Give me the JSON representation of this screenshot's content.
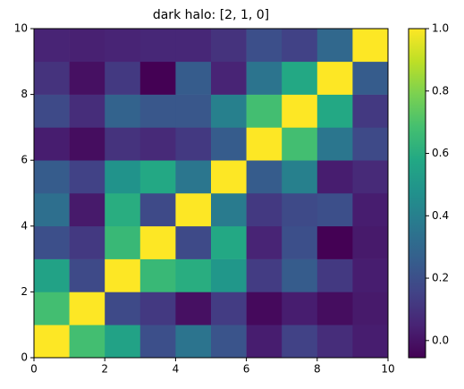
{
  "chart_data": {
    "type": "heatmap",
    "title": "dark halo: [2, 1, 0]",
    "colormap": "viridis",
    "z": [
      [
        1.0,
        0.68,
        0.55,
        0.2,
        0.35,
        0.22,
        0.03,
        0.15,
        0.08,
        0.03
      ],
      [
        0.68,
        1.0,
        0.18,
        0.12,
        -0.01,
        0.13,
        -0.03,
        0.03,
        -0.02,
        0.02
      ],
      [
        0.55,
        0.18,
        1.0,
        0.65,
        0.6,
        0.5,
        0.13,
        0.25,
        0.12,
        0.03
      ],
      [
        0.2,
        0.12,
        0.65,
        1.0,
        0.18,
        0.58,
        0.05,
        0.2,
        -0.055,
        0.02
      ],
      [
        0.33,
        0.02,
        0.6,
        0.18,
        1.0,
        0.38,
        0.12,
        0.18,
        0.2,
        0.03
      ],
      [
        0.25,
        0.15,
        0.48,
        0.58,
        0.36,
        1.0,
        0.25,
        0.4,
        0.03,
        0.07
      ],
      [
        0.03,
        -0.02,
        0.1,
        0.07,
        0.12,
        0.25,
        1.0,
        0.68,
        0.36,
        0.18
      ],
      [
        0.18,
        0.08,
        0.28,
        0.23,
        0.23,
        0.4,
        0.68,
        1.0,
        0.58,
        0.12
      ],
      [
        0.1,
        -0.01,
        0.12,
        -0.055,
        0.25,
        0.05,
        0.35,
        0.58,
        1.0,
        0.25
      ],
      [
        0.05,
        0.04,
        0.05,
        0.06,
        0.06,
        0.1,
        0.2,
        0.15,
        0.3,
        1.0
      ]
    ],
    "xlim": [
      0,
      10
    ],
    "xticks": [
      0,
      2,
      4,
      6,
      8,
      10
    ],
    "ylim": [
      0,
      10
    ],
    "yticks": [
      0,
      2,
      4,
      6,
      8,
      10
    ],
    "clim": [
      -0.055,
      1.0
    ],
    "cticks": [
      {
        "value": 0,
        "label": "0.0"
      },
      0.2,
      0.4,
      0.6,
      0.8,
      {
        "value": 1,
        "label": "1.0"
      }
    ]
  }
}
